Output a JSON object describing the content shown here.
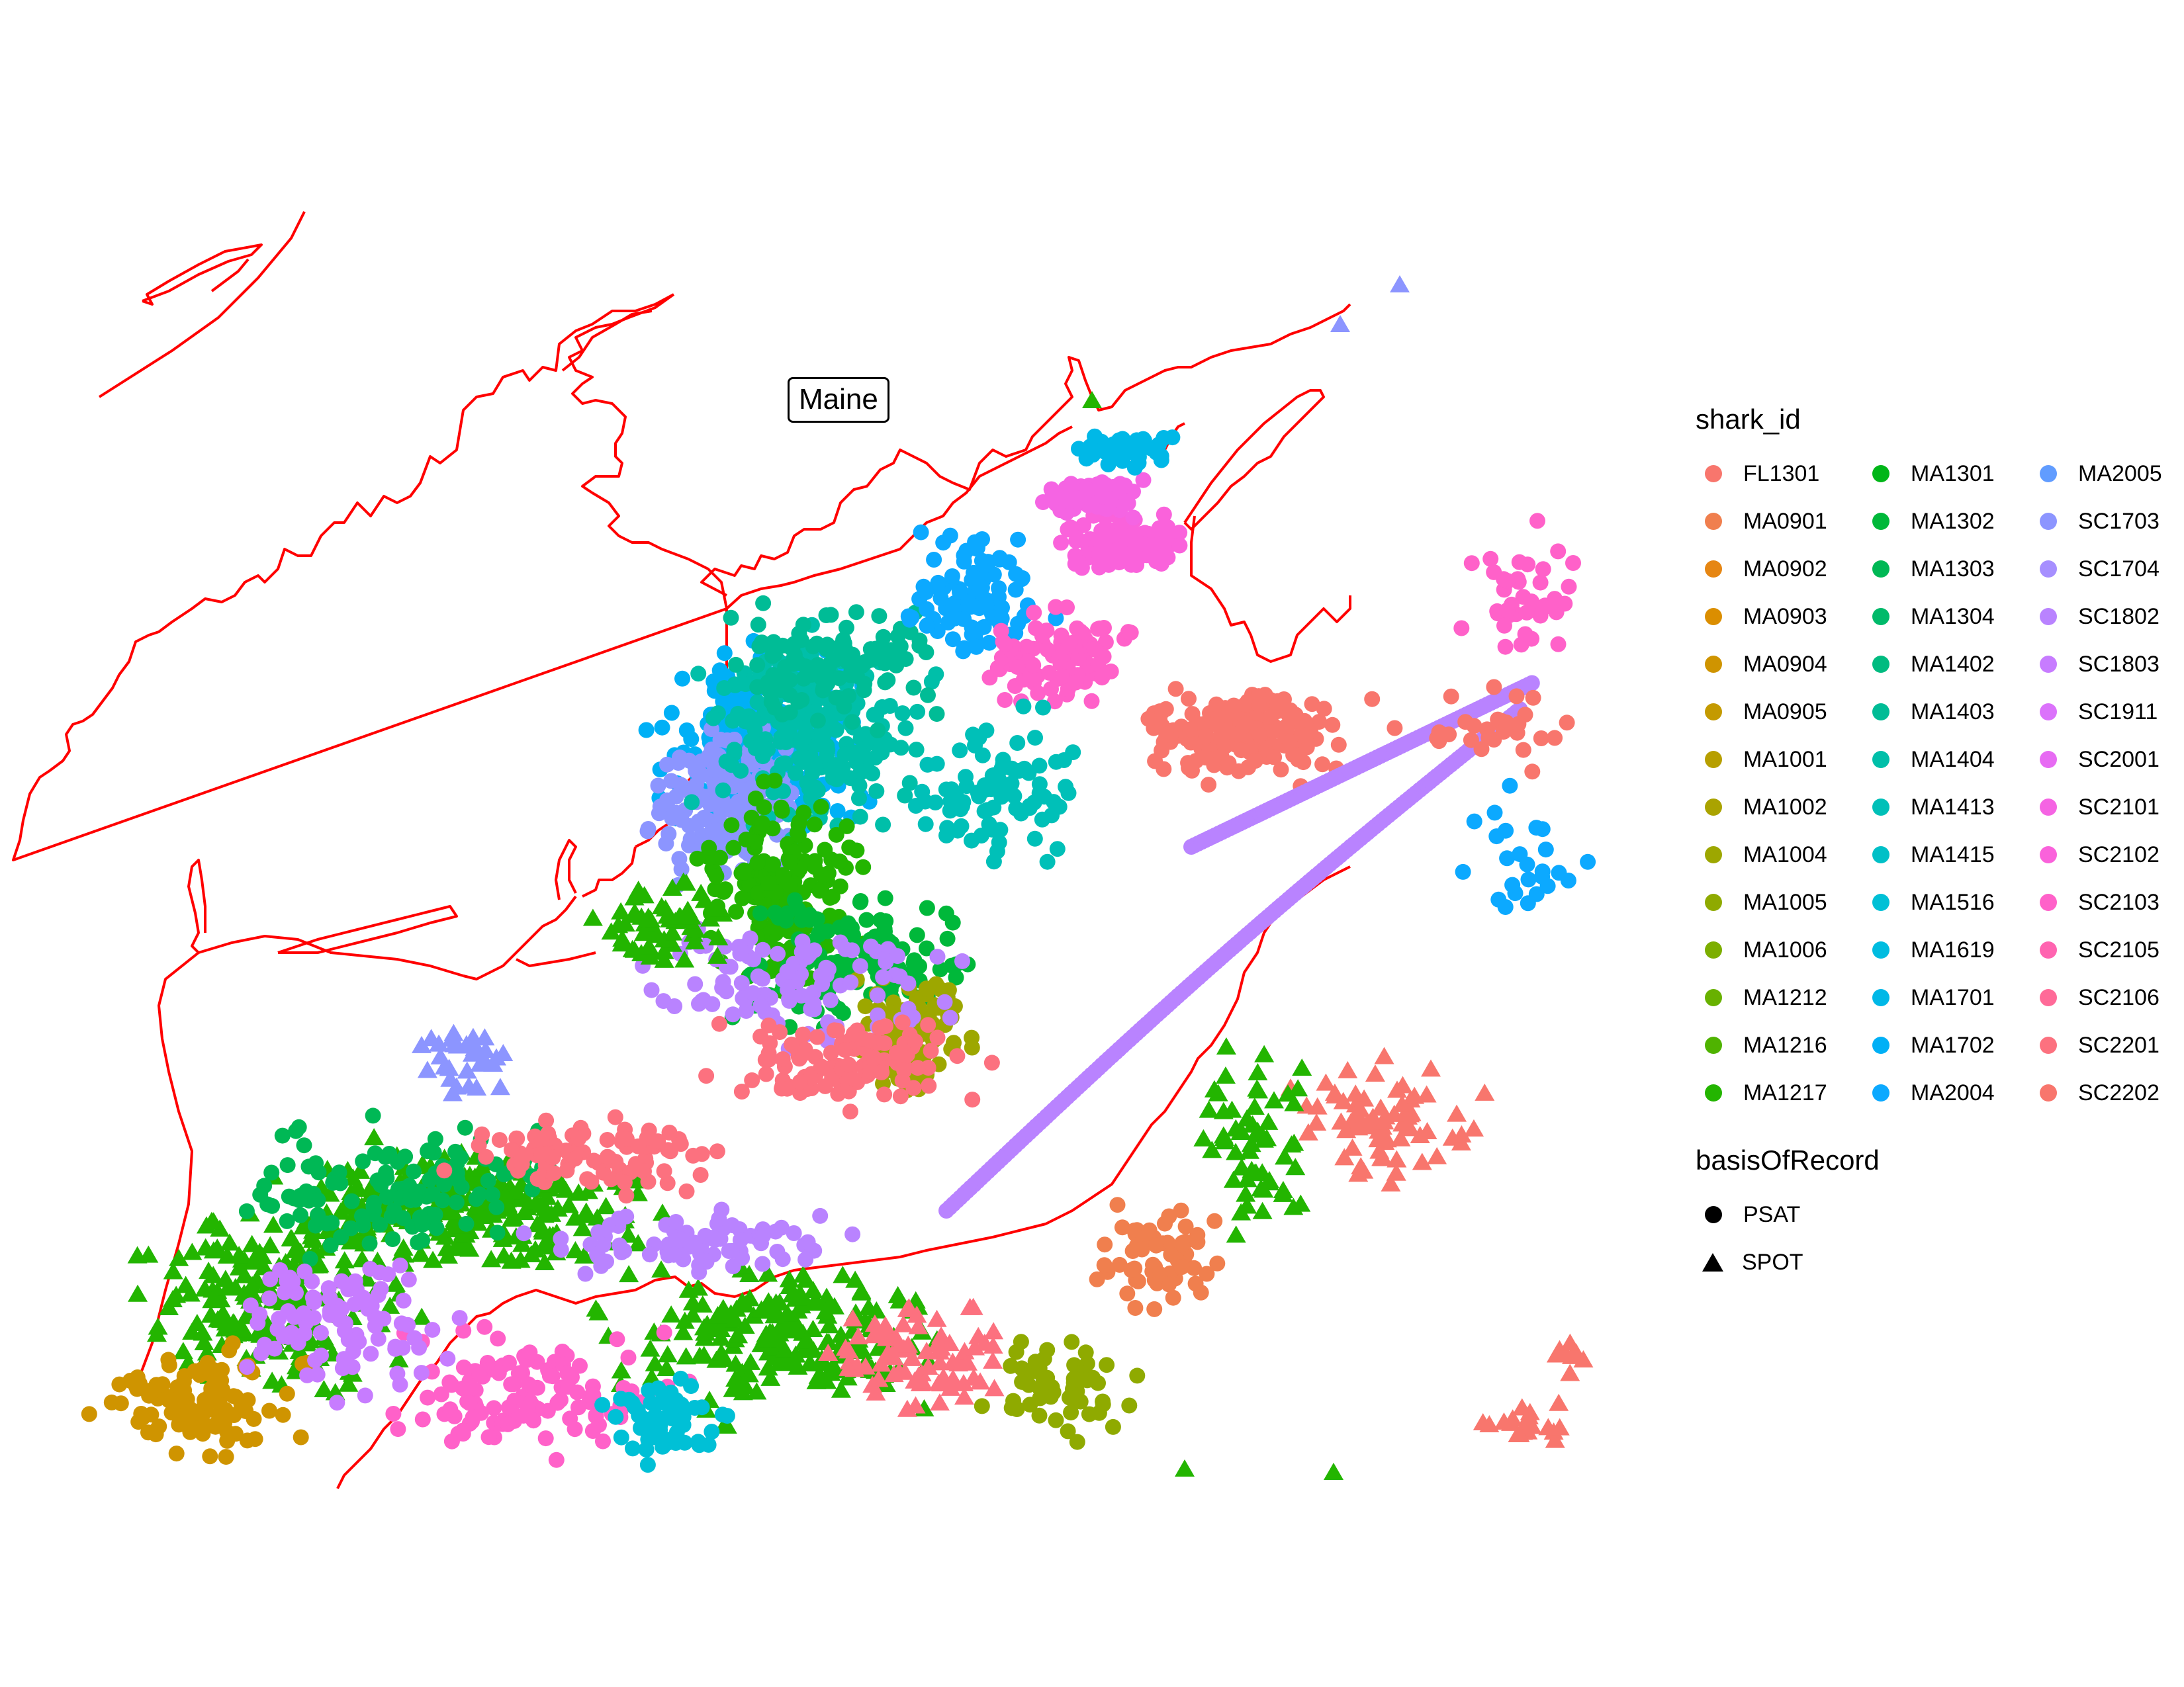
{
  "map": {
    "region_label": "Maine",
    "coastline_color": "#ff0000",
    "point_layer": "shark tracking detections (dense cluster over Gulf of Maine, shelf and offshore)"
  },
  "legend": {
    "color_title": "shark_id",
    "shape_title": "basisOfRecord",
    "ids": [
      {
        "label": "FL1301",
        "color": "#F8766D"
      },
      {
        "label": "MA0901",
        "color": "#F07F4E"
      },
      {
        "label": "MA0902",
        "color": "#E68613"
      },
      {
        "label": "MA0903",
        "color": "#DB8E00"
      },
      {
        "label": "MA0904",
        "color": "#CF9400"
      },
      {
        "label": "MA0905",
        "color": "#C49A00"
      },
      {
        "label": "MA1001",
        "color": "#B79F00"
      },
      {
        "label": "MA1002",
        "color": "#AAA300"
      },
      {
        "label": "MA1004",
        "color": "#9DA700"
      },
      {
        "label": "MA1005",
        "color": "#8FAA00"
      },
      {
        "label": "MA1006",
        "color": "#7CAE00"
      },
      {
        "label": "MA1212",
        "color": "#68B100"
      },
      {
        "label": "MA1216",
        "color": "#4FB300"
      },
      {
        "label": "MA1217",
        "color": "#23B500"
      },
      {
        "label": "MA1301",
        "color": "#00B618"
      },
      {
        "label": "MA1302",
        "color": "#00B83A"
      },
      {
        "label": "MA1303",
        "color": "#00B855"
      },
      {
        "label": "MA1304",
        "color": "#00BA6A"
      },
      {
        "label": "MA1402",
        "color": "#00BB80"
      },
      {
        "label": "MA1403",
        "color": "#00BC96"
      },
      {
        "label": "MA1404",
        "color": "#00BFA9"
      },
      {
        "label": "MA1413",
        "color": "#00C0B8"
      },
      {
        "label": "MA1415",
        "color": "#00C0C7"
      },
      {
        "label": "MA1516",
        "color": "#00C0D6"
      },
      {
        "label": "MA1619",
        "color": "#00BCE0"
      },
      {
        "label": "MA1701",
        "color": "#00B8E7"
      },
      {
        "label": "MA1702",
        "color": "#00B0F6"
      },
      {
        "label": "MA2004",
        "color": "#0CA9FF"
      },
      {
        "label": "MA2005",
        "color": "#619CFF"
      },
      {
        "label": "SC1703",
        "color": "#8C95FF"
      },
      {
        "label": "SC1704",
        "color": "#A68FFF"
      },
      {
        "label": "SC1802",
        "color": "#B983FF"
      },
      {
        "label": "SC1803",
        "color": "#C77CFF"
      },
      {
        "label": "SC1911",
        "color": "#DB72FB"
      },
      {
        "label": "SC2001",
        "color": "#E76BF3"
      },
      {
        "label": "SC2101",
        "color": "#F564E3"
      },
      {
        "label": "SC2102",
        "color": "#FA62DB"
      },
      {
        "label": "SC2103",
        "color": "#FF61C9"
      },
      {
        "label": "SC2105",
        "color": "#FF64B0"
      },
      {
        "label": "SC2106",
        "color": "#FF6A98"
      },
      {
        "label": "SC2201",
        "color": "#FC717F"
      },
      {
        "label": "SC2202",
        "color": "#F8766D"
      }
    ],
    "shapes": [
      {
        "label": "PSAT",
        "icon": "circle-icon"
      },
      {
        "label": "SPOT",
        "icon": "triangle-icon"
      }
    ]
  }
}
